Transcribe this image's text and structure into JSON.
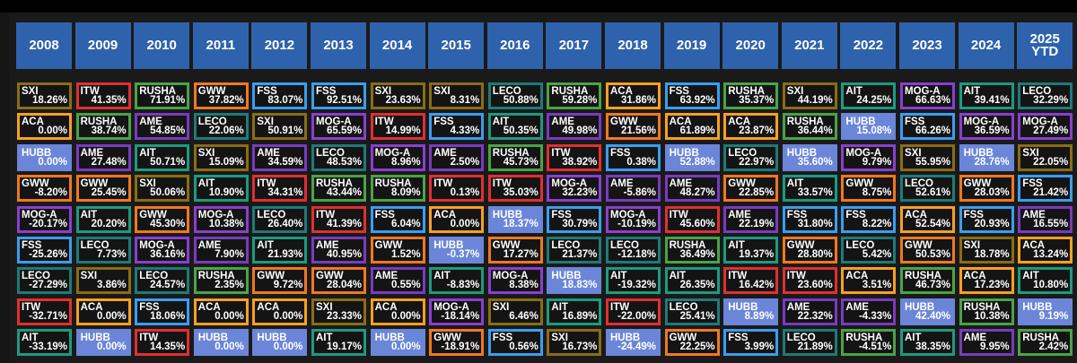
{
  "years": [
    "2008",
    "2009",
    "2010",
    "2011",
    "2012",
    "2013",
    "2014",
    "2015",
    "2016",
    "2017",
    "2018",
    "2019",
    "2020",
    "2021",
    "2022",
    "2023",
    "2024",
    "2025\nYTD"
  ],
  "colors": {
    "SXI": "#8a6d14",
    "ITW": "#e03030",
    "RUSHA": "#4aa346",
    "GWW": "#f07820",
    "FSS": "#3a9ef0",
    "LECO": "#1f7a78",
    "ACA": "#f7a020",
    "AME": "#7a3bbf",
    "AIT": "#1e9a80",
    "MOG-A": "#8a3fd0",
    "HUBB": "#6b86d8"
  },
  "highlight": "HUBB",
  "columns": [
    [
      [
        "SXI",
        "18.26%"
      ],
      [
        "ACA",
        "0.00%"
      ],
      [
        "HUBB",
        "0.00%"
      ],
      [
        "GWW",
        "-8.20%"
      ],
      [
        "MOG-A",
        "-20.17%"
      ],
      [
        "FSS",
        "-25.26%"
      ],
      [
        "LECO",
        "-27.29%"
      ],
      [
        "ITW",
        "-32.71%"
      ],
      [
        "AIT",
        "-33.19%"
      ]
    ],
    [
      [
        "ITW",
        "41.35%"
      ],
      [
        "RUSHA",
        "38.74%"
      ],
      [
        "AME",
        "27.48%"
      ],
      [
        "GWW",
        "25.45%"
      ],
      [
        "AIT",
        "20.20%"
      ],
      [
        "LECO",
        "7.73%"
      ],
      [
        "SXI",
        "3.86%"
      ],
      [
        "ACA",
        "0.00%"
      ],
      [
        "HUBB",
        "0.00%"
      ]
    ],
    [
      [
        "RUSHA",
        "71.91%"
      ],
      [
        "AME",
        "54.85%"
      ],
      [
        "AIT",
        "50.71%"
      ],
      [
        "SXI",
        "50.06%"
      ],
      [
        "GWW",
        "45.30%"
      ],
      [
        "MOG-A",
        "36.16%"
      ],
      [
        "LECO",
        "24.57%"
      ],
      [
        "FSS",
        "18.06%"
      ],
      [
        "ITW",
        "14.35%"
      ]
    ],
    [
      [
        "GWW",
        "37.82%"
      ],
      [
        "LECO",
        "22.06%"
      ],
      [
        "SXI",
        "15.09%"
      ],
      [
        "AIT",
        "10.90%"
      ],
      [
        "MOG-A",
        "10.38%"
      ],
      [
        "AME",
        "7.90%"
      ],
      [
        "RUSHA",
        "2.35%"
      ],
      [
        "ACA",
        "0.00%"
      ],
      [
        "HUBB",
        "0.00%"
      ]
    ],
    [
      [
        "FSS",
        "83.07%"
      ],
      [
        "SXI",
        "50.91%"
      ],
      [
        "AME",
        "34.59%"
      ],
      [
        "ITW",
        "34.31%"
      ],
      [
        "LECO",
        "26.40%"
      ],
      [
        "AIT",
        "21.93%"
      ],
      [
        "GWW",
        "9.72%"
      ],
      [
        "ACA",
        "0.00%"
      ],
      [
        "HUBB",
        "0.00%"
      ]
    ],
    [
      [
        "FSS",
        "92.51%"
      ],
      [
        "MOG-A",
        "65.59%"
      ],
      [
        "LECO",
        "48.53%"
      ],
      [
        "RUSHA",
        "43.44%"
      ],
      [
        "ITW",
        "41.39%"
      ],
      [
        "AME",
        "40.95%"
      ],
      [
        "GWW",
        "28.04%"
      ],
      [
        "SXI",
        "23.33%"
      ],
      [
        "AIT",
        "19.17%"
      ]
    ],
    [
      [
        "SXI",
        "23.63%"
      ],
      [
        "ITW",
        "14.99%"
      ],
      [
        "MOG-A",
        "8.96%"
      ],
      [
        "RUSHA",
        "8.09%"
      ],
      [
        "FSS",
        "6.04%"
      ],
      [
        "GWW",
        "1.52%"
      ],
      [
        "AME",
        "0.55%"
      ],
      [
        "ACA",
        "0.00%"
      ],
      [
        "HUBB",
        "0.00%"
      ]
    ],
    [
      [
        "SXI",
        "8.31%"
      ],
      [
        "FSS",
        "4.33%"
      ],
      [
        "AME",
        "2.50%"
      ],
      [
        "ITW",
        "0.13%"
      ],
      [
        "ACA",
        "0.00%"
      ],
      [
        "HUBB",
        "-0.37%"
      ],
      [
        "AIT",
        "-8.83%"
      ],
      [
        "MOG-A",
        "-18.14%"
      ],
      [
        "GWW",
        "-18.91%"
      ]
    ],
    [
      [
        "LECO",
        "50.88%"
      ],
      [
        "AIT",
        "50.35%"
      ],
      [
        "RUSHA",
        "45.73%"
      ],
      [
        "ITW",
        "35.03%"
      ],
      [
        "HUBB",
        "18.37%"
      ],
      [
        "GWW",
        "17.27%"
      ],
      [
        "MOG-A",
        "8.38%"
      ],
      [
        "SXI",
        "6.46%"
      ],
      [
        "FSS",
        "0.56%"
      ]
    ],
    [
      [
        "RUSHA",
        "59.28%"
      ],
      [
        "AME",
        "49.98%"
      ],
      [
        "ITW",
        "38.92%"
      ],
      [
        "MOG-A",
        "32.23%"
      ],
      [
        "FSS",
        "30.79%"
      ],
      [
        "LECO",
        "21.37%"
      ],
      [
        "HUBB",
        "18.83%"
      ],
      [
        "AIT",
        "16.89%"
      ],
      [
        "SXI",
        "16.73%"
      ]
    ],
    [
      [
        "ACA",
        "31.86%"
      ],
      [
        "GWW",
        "21.56%"
      ],
      [
        "FSS",
        "0.38%"
      ],
      [
        "AME",
        "-5.86%"
      ],
      [
        "MOG-A",
        "-10.19%"
      ],
      [
        "LECO",
        "-12.18%"
      ],
      [
        "AIT",
        "-19.32%"
      ],
      [
        "ITW",
        "-22.00%"
      ],
      [
        "HUBB",
        "-24.49%"
      ]
    ],
    [
      [
        "FSS",
        "63.92%"
      ],
      [
        "ACA",
        "61.89%"
      ],
      [
        "HUBB",
        "52.88%"
      ],
      [
        "AME",
        "48.27%"
      ],
      [
        "ITW",
        "45.60%"
      ],
      [
        "RUSHA",
        "36.49%"
      ],
      [
        "AIT",
        "26.35%"
      ],
      [
        "LECO",
        "25.41%"
      ],
      [
        "GWW",
        "22.25%"
      ]
    ],
    [
      [
        "RUSHA",
        "35.37%"
      ],
      [
        "ACA",
        "23.87%"
      ],
      [
        "LECO",
        "22.97%"
      ],
      [
        "GWW",
        "22.85%"
      ],
      [
        "AME",
        "22.19%"
      ],
      [
        "AIT",
        "19.37%"
      ],
      [
        "ITW",
        "16.42%"
      ],
      [
        "HUBB",
        "8.89%"
      ],
      [
        "FSS",
        "3.99%"
      ]
    ],
    [
      [
        "SXI",
        "44.19%"
      ],
      [
        "RUSHA",
        "36.44%"
      ],
      [
        "HUBB",
        "35.60%"
      ],
      [
        "AIT",
        "33.57%"
      ],
      [
        "FSS",
        "31.80%"
      ],
      [
        "GWW",
        "28.80%"
      ],
      [
        "ITW",
        "23.60%"
      ],
      [
        "AME",
        "22.32%"
      ],
      [
        "LECO",
        "21.89%"
      ]
    ],
    [
      [
        "AIT",
        "24.25%"
      ],
      [
        "HUBB",
        "15.08%"
      ],
      [
        "MOG-A",
        "9.79%"
      ],
      [
        "GWW",
        "8.75%"
      ],
      [
        "FSS",
        "8.22%"
      ],
      [
        "LECO",
        "5.42%"
      ],
      [
        "ACA",
        "3.51%"
      ],
      [
        "AME",
        "-4.33%"
      ],
      [
        "RUSHA",
        "-4.51%"
      ]
    ],
    [
      [
        "MOG-A",
        "66.63%"
      ],
      [
        "FSS",
        "66.26%"
      ],
      [
        "SXI",
        "55.95%"
      ],
      [
        "LECO",
        "52.61%"
      ],
      [
        "ACA",
        "52.54%"
      ],
      [
        "GWW",
        "50.53%"
      ],
      [
        "RUSHA",
        "46.73%"
      ],
      [
        "HUBB",
        "42.40%"
      ],
      [
        "AIT",
        "38.35%"
      ]
    ],
    [
      [
        "AIT",
        "39.41%"
      ],
      [
        "MOG-A",
        "36.59%"
      ],
      [
        "HUBB",
        "28.76%"
      ],
      [
        "GWW",
        "28.03%"
      ],
      [
        "FSS",
        "20.93%"
      ],
      [
        "SXI",
        "18.78%"
      ],
      [
        "ACA",
        "17.23%"
      ],
      [
        "RUSHA",
        "10.38%"
      ],
      [
        "AME",
        "9.95%"
      ]
    ],
    [
      [
        "LECO",
        "32.29%"
      ],
      [
        "MOG-A",
        "27.49%"
      ],
      [
        "SXI",
        "22.05%"
      ],
      [
        "FSS",
        "21.42%"
      ],
      [
        "AME",
        "16.55%"
      ],
      [
        "ACA",
        "13.24%"
      ],
      [
        "AIT",
        "10.80%"
      ],
      [
        "HUBB",
        "9.19%"
      ],
      [
        "RUSHA",
        "2.42%"
      ]
    ]
  ]
}
